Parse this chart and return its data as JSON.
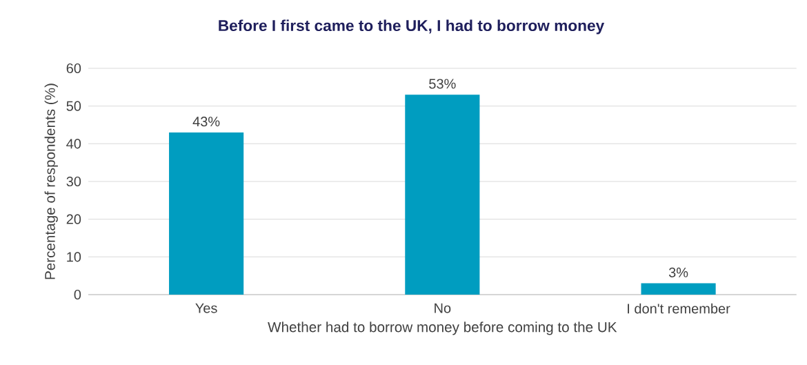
{
  "chart_data": {
    "type": "bar",
    "title": "Before I first came to the UK, I had to borrow money",
    "xlabel": "Whether had to borrow money before coming to the UK",
    "ylabel": "Percentage of respondents (%)",
    "categories": [
      "Yes",
      "No",
      "I don't remember"
    ],
    "values": [
      43,
      53,
      3
    ],
    "value_labels": [
      "43%",
      "53%",
      "3%"
    ],
    "color": "#009dc0",
    "ylim": [
      0,
      60
    ],
    "yticks": [
      0,
      10,
      20,
      30,
      40,
      50,
      60
    ],
    "grid": "y"
  }
}
